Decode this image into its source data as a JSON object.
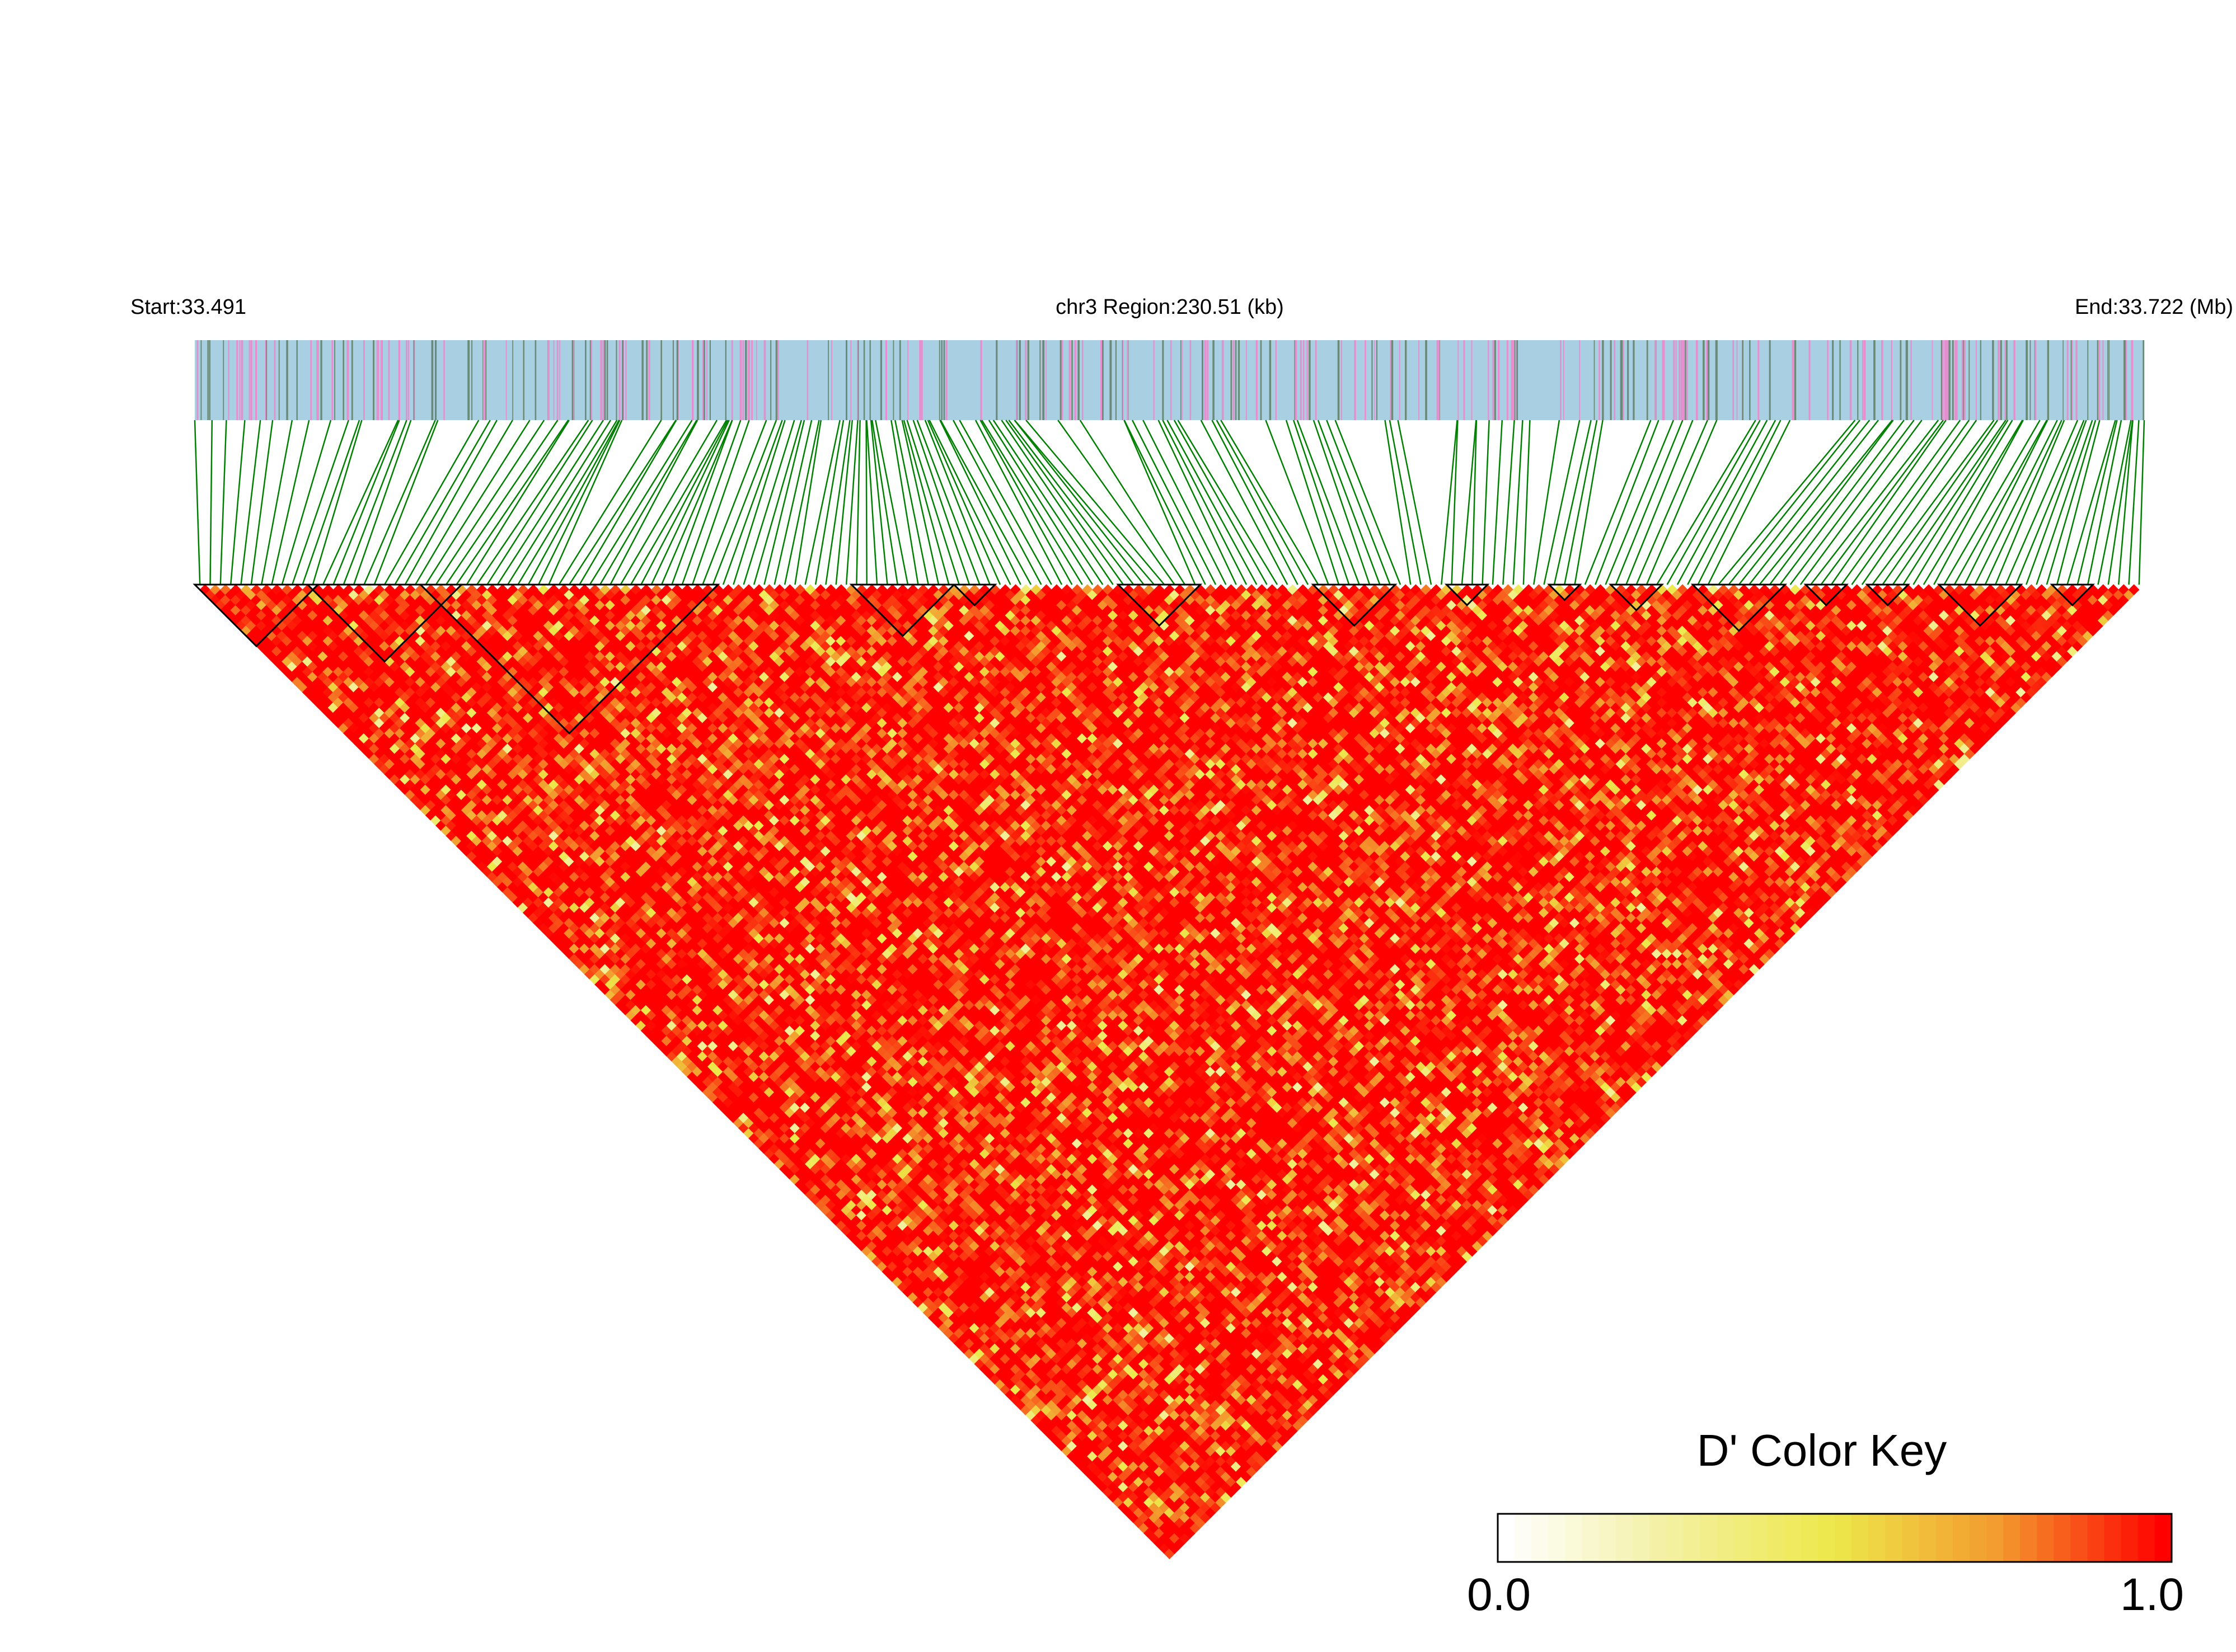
{
  "chart_data": {
    "type": "heatmap",
    "subtype": "linkage-disequilibrium-triangle",
    "header": {
      "start_label": "Start:33.491",
      "region_label": "chr3 Region:230.51 (kb)",
      "end_label": "End:33.722 (Mb)"
    },
    "region": {
      "chromosome": "chr3",
      "start_mb": 33.491,
      "end_mb": 33.722,
      "length_kb": 230.51
    },
    "metric": "D'",
    "snp_count_approx": 190,
    "color_key": {
      "title": "D' Color Key",
      "min_label": "0.0",
      "max_label": "1.0",
      "range": [
        0.0,
        1.0
      ],
      "colors": [
        "#ffffff",
        "#f3f0a0",
        "#ede84a",
        "#f39a2e",
        "#ff0000"
      ]
    },
    "colors": {
      "gene_track_bg": "#a8cfe2",
      "gene_marks": [
        "#e68fce",
        "#6b8a78"
      ],
      "connector_lines": "#008000",
      "block_outline": "#000000"
    },
    "mean_d_prime_approx": 0.9,
    "ld_blocks_approx": [
      {
        "from_snp": 1,
        "to_snp": 12
      },
      {
        "from_snp": 12,
        "to_snp": 26
      },
      {
        "from_snp": 23,
        "to_snp": 51
      },
      {
        "from_snp": 65,
        "to_snp": 74
      },
      {
        "from_snp": 75,
        "to_snp": 78
      },
      {
        "from_snp": 91,
        "to_snp": 98
      },
      {
        "from_snp": 110,
        "to_snp": 117
      },
      {
        "from_snp": 123,
        "to_snp": 126
      },
      {
        "from_snp": 133,
        "to_snp": 135
      },
      {
        "from_snp": 139,
        "to_snp": 143
      },
      {
        "from_snp": 147,
        "to_snp": 155
      },
      {
        "from_snp": 158,
        "to_snp": 161
      },
      {
        "from_snp": 164,
        "to_snp": 167
      },
      {
        "from_snp": 171,
        "to_snp": 178
      },
      {
        "from_snp": 182,
        "to_snp": 185
      }
    ]
  }
}
